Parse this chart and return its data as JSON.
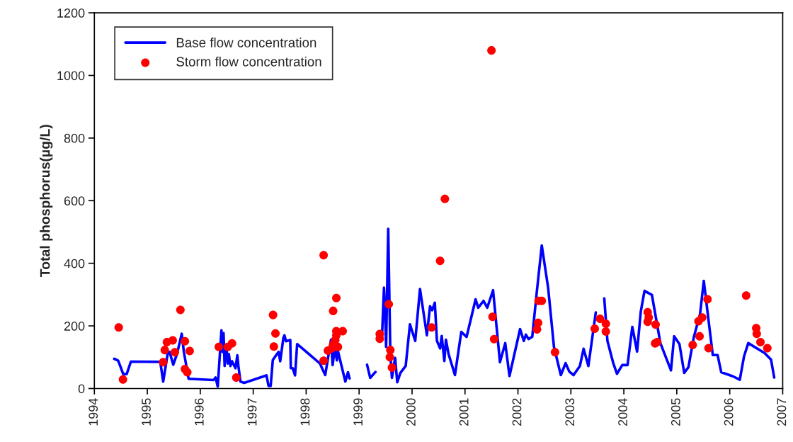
{
  "chart_data": {
    "type": "line",
    "ylabel": "Total phosphorus(µg/L)",
    "xlim": [
      1994,
      2007
    ],
    "xticks": [
      1994,
      1995,
      1996,
      1997,
      1998,
      1999,
      2000,
      2001,
      2002,
      2003,
      2004,
      2005,
      2006,
      2007
    ],
    "ylim": [
      0,
      1200
    ],
    "yticks": [
      0,
      200,
      400,
      600,
      800,
      1000,
      1200
    ],
    "grid": false,
    "legend": "top left",
    "series": [
      {
        "name": "Base flow concentration",
        "color": "#0000ff",
        "line_style": "solid",
        "marker": "none",
        "x": [
          1994.375,
          1994.45,
          1994.545,
          1994.61,
          1994.69,
          1995.245,
          1995.3,
          1995.39,
          1995.42,
          1995.49,
          1995.56,
          1995.65,
          1995.69,
          1995.78,
          1996.25,
          1996.29,
          1996.33,
          1996.4,
          1996.42,
          1996.44,
          1996.46,
          1996.49,
          1996.52,
          1996.54,
          1996.57,
          1996.6,
          1996.665,
          1996.7,
          1996.72,
          1996.76,
          1996.83,
          1997.25,
          1997.29,
          1997.33,
          1997.37,
          1997.43,
          1997.48,
          1997.51,
          1997.57,
          1997.59,
          1997.62,
          1997.7,
          1997.71,
          1997.745,
          1997.79,
          1997.83,
          1998.26,
          1998.36,
          1998.47,
          1998.5,
          1998.54,
          1998.58,
          1998.6,
          1998.74,
          1998.79,
          1998.82,
          1999.0,
          1999.15,
          1999.21,
          1999.31,
          1999.37,
          1999.43,
          1999.47,
          1999.49,
          1999.51,
          1999.55,
          1999.59,
          1999.62,
          1999.68,
          1999.72,
          1999.78,
          1999.88,
          1999.96,
          2000.06,
          2000.15,
          2000.28,
          2000.34,
          2000.38,
          2000.43,
          2000.47,
          2000.53,
          2000.56,
          2000.61,
          2000.64,
          2000.69,
          2000.81,
          2000.93,
          2001.03,
          2001.2,
          2001.25,
          2001.35,
          2001.42,
          2001.53,
          2001.66,
          2001.76,
          2001.84,
          2002.04,
          2002.11,
          2002.15,
          2002.2,
          2002.27,
          2002.35,
          2002.45,
          2002.57,
          2002.68,
          2002.81,
          2002.9,
          2002.97,
          2003.05,
          2003.17,
          2003.24,
          2003.33,
          2003.47,
          2003.55,
          2003.63,
          2003.69,
          2003.8,
          2003.87,
          2003.97,
          2004.07,
          2004.16,
          2004.25,
          2004.32,
          2004.39,
          2004.53,
          2004.69,
          2004.89,
          2004.95,
          2005.05,
          2005.14,
          2005.22,
          2005.32,
          2005.44,
          2005.51,
          2005.59,
          2005.68,
          2005.77,
          2005.84,
          2006.06,
          2006.19,
          2006.27,
          2006.35,
          2006.66,
          2006.78,
          2006.84
        ],
        "values": [
          95,
          89,
          46,
          46,
          86,
          85,
          22,
          117,
          117,
          76,
          110,
          175,
          117,
          31,
          27,
          35,
          6,
          186,
          117,
          177,
          72,
          140,
          80,
          110,
          72,
          87,
          65,
          106,
          72,
          22,
          18,
          42,
          8,
          8,
          91,
          106,
          117,
          87,
          162,
          170,
          151,
          155,
          65,
          65,
          42,
          142,
          80,
          43,
          156,
          75,
          128,
          90,
          120,
          22,
          52,
          32,
          null,
          76,
          34,
          53,
          null,
          155,
          322,
          246,
          133,
          510,
          110,
          34,
          98,
          20,
          50,
          72,
          205,
          152,
          318,
          170,
          263,
          250,
          274,
          152,
          128,
          168,
          88,
          156,
          110,
          43,
          181,
          165,
          285,
          258,
          280,
          258,
          314,
          84,
          145,
          40,
          190,
          152,
          172,
          158,
          165,
          299,
          457,
          322,
          133,
          43,
          81,
          54,
          43,
          72,
          127,
          72,
          243,
          null,
          288,
          152,
          81,
          47,
          75,
          75,
          197,
          118,
          246,
          312,
          299,
          145,
          58,
          167,
          142,
          50,
          68,
          163,
          239,
          344,
          231,
          107,
          107,
          52,
          39,
          28,
          103,
          145,
          113,
          92,
          35
        ]
      },
      {
        "name": "Storm flow concentration",
        "type": "scatter",
        "color": "#ff0000",
        "marker": "circle",
        "x": [
          1994.46,
          1994.54,
          1995.3,
          1995.33,
          1995.37,
          1995.48,
          1995.52,
          1995.625,
          1995.71,
          1995.71,
          1995.755,
          1995.8,
          1996.35,
          1996.52,
          1996.6,
          1996.68,
          1997.375,
          1997.42,
          1997.39,
          1998.33,
          1998.57,
          1998.51,
          1998.57,
          1998.69,
          1998.33,
          1998.41,
          1998.49,
          1998.6,
          1998.55,
          1998.57,
          1998.51,
          1999.39,
          1999.39,
          1999.56,
          1999.59,
          1999.58,
          1999.62,
          2000.53,
          2000.37,
          2000.62,
          2001.5,
          2001.52,
          2001.55,
          2002.39,
          2002.45,
          2002.38,
          2002.36,
          2002.7,
          2003.45,
          2003.55,
          2003.66,
          2003.66,
          2004.45,
          2004.47,
          2004.45,
          2004.6,
          2004.59,
          2004.63,
          2005.3,
          2005.43,
          2005.41,
          2005.48,
          2005.58,
          2005.6,
          2006.31,
          2006.5,
          2006.51,
          2006.58,
          2006.71
        ],
        "values": [
          195,
          29,
          84,
          123,
          148,
          154,
          116,
          251,
          151,
          62,
          52,
          120,
          133,
          133,
          144,
          35,
          235,
          176,
          134,
          426,
          289,
          248,
          183,
          183,
          89,
          121,
          129,
          133,
          155,
          170,
          140,
          174,
          159,
          269,
          123,
          100,
          67,
          408,
          195,
          606,
          1080,
          229,
          158,
          280,
          280,
          210,
          189,
          116,
          191,
          223,
          207,
          182,
          244,
          227,
          213,
          204,
          144,
          148,
          139,
          167,
          215,
          227,
          285,
          129,
          297,
          193,
          175,
          148,
          129
        ]
      }
    ]
  }
}
